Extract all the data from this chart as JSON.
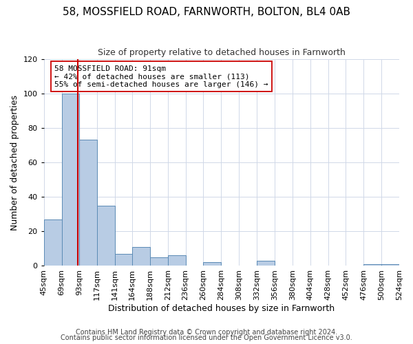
{
  "title1": "58, MOSSFIELD ROAD, FARNWORTH, BOLTON, BL4 0AB",
  "title2": "Size of property relative to detached houses in Farnworth",
  "xlabel": "Distribution of detached houses by size in Farnworth",
  "ylabel": "Number of detached properties",
  "bin_edges": [
    45,
    69,
    93,
    117,
    141,
    164,
    188,
    212,
    236,
    260,
    284,
    308,
    332,
    356,
    380,
    404,
    428,
    452,
    476,
    500,
    524
  ],
  "counts": [
    27,
    100,
    73,
    35,
    7,
    11,
    5,
    6,
    0,
    2,
    0,
    0,
    3,
    0,
    0,
    0,
    0,
    0,
    1,
    1
  ],
  "bar_color": "#b8cce4",
  "bar_edge_color": "#5a8ab5",
  "property_size": 91,
  "vline_color": "#cc0000",
  "annotation_line1": "58 MOSSFIELD ROAD: 91sqm",
  "annotation_line2": "← 42% of detached houses are smaller (113)",
  "annotation_line3": "55% of semi-detached houses are larger (146) →",
  "annotation_box_color": "#ffffff",
  "annotation_box_edge": "#cc0000",
  "ylim": [
    0,
    120
  ],
  "yticks": [
    0,
    20,
    40,
    60,
    80,
    100,
    120
  ],
  "footer1": "Contains HM Land Registry data © Crown copyright and database right 2024.",
  "footer2": "Contains public sector information licensed under the Open Government Licence v3.0.",
  "bg_color": "#ffffff",
  "grid_color": "#d0d8e8",
  "title1_fontsize": 11,
  "title2_fontsize": 9,
  "axis_label_fontsize": 9,
  "tick_label_fontsize": 8,
  "annotation_fontsize": 8,
  "footer_fontsize": 7
}
